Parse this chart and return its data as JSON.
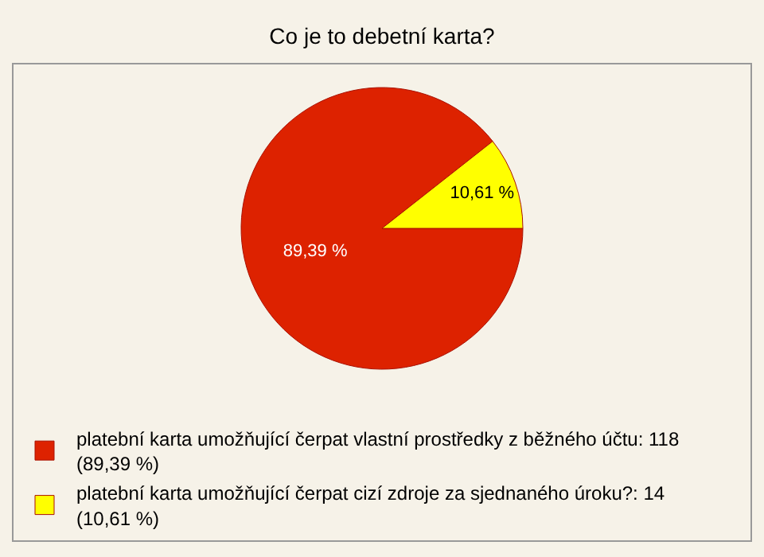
{
  "chart_data": {
    "type": "pie",
    "title": "Co je to debetní karta?",
    "categories": [
      "platební karta umožňující čerpat vlastní prostředky z běžného účtu: 118 (89,39 %)",
      "platební karta umožňující čerpat cizí zdroje za sjednaného úroku?: 14 (10,61 %)"
    ],
    "values": [
      89.39,
      10.61
    ],
    "value_labels": [
      "89,39 %",
      "10,61 %"
    ],
    "colors": [
      "#dd2200",
      "#ffff00"
    ],
    "legend": "bottom"
  }
}
